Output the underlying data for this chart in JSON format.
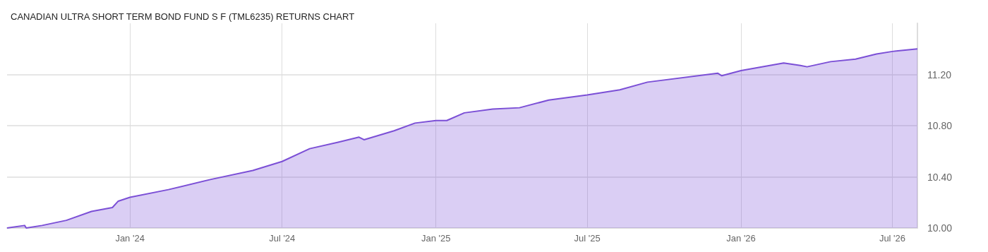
{
  "chart_data": {
    "type": "area",
    "title": "CANADIAN ULTRA SHORT TERM BOND FUND S F (TML6235) RETURNS CHART",
    "x": [
      "2023-08-07",
      "2023-08-28",
      "2023-08-30",
      "2023-09-18",
      "2023-10-17",
      "2023-11-16",
      "2023-12-11",
      "2023-12-18",
      "2024-01-01",
      "2024-02-16",
      "2024-04-07",
      "2024-05-27",
      "2024-07-01",
      "2024-08-03",
      "2024-09-06",
      "2024-10-01",
      "2024-10-07",
      "2024-11-12",
      "2024-12-07",
      "2025-01-01",
      "2025-01-14",
      "2025-02-04",
      "2025-03-10",
      "2025-04-11",
      "2025-05-16",
      "2025-07-01",
      "2025-08-09",
      "2025-09-11",
      "2025-12-04",
      "2025-12-09",
      "2026-01-01",
      "2026-02-21",
      "2026-03-13",
      "2026-03-21",
      "2026-04-18",
      "2026-05-18",
      "2026-06-12",
      "2026-07-01",
      "2026-07-31"
    ],
    "series": [
      {
        "color": "#7b4fd6",
        "values": [
          10.0,
          10.02,
          10.0,
          10.02,
          10.06,
          10.13,
          10.16,
          10.21,
          10.24,
          10.3,
          10.38,
          10.45,
          10.52,
          10.62,
          10.67,
          10.71,
          10.69,
          10.76,
          10.82,
          10.84,
          10.84,
          10.9,
          10.93,
          10.94,
          11.0,
          11.04,
          11.08,
          11.14,
          11.21,
          11.19,
          11.23,
          11.29,
          11.27,
          11.26,
          11.3,
          11.32,
          11.36,
          11.38,
          11.4
        ]
      }
    ],
    "xlim": [
      "2023-08-07",
      "2026-07-31"
    ],
    "xticks": [
      {
        "value": "2024-01-01",
        "label": "Jan '24"
      },
      {
        "value": "2024-07-01",
        "label": "Jul '24"
      },
      {
        "value": "2025-01-01",
        "label": "Jan '25"
      },
      {
        "value": "2025-07-01",
        "label": "Jul '25"
      },
      {
        "value": "2026-01-01",
        "label": "Jan '26"
      },
      {
        "value": "2026-07-01",
        "label": "Jul '26"
      }
    ],
    "ylim": [
      10,
      11.6
    ],
    "yticks": [
      {
        "value": 10,
        "label": "10.00"
      },
      {
        "value": 10.4,
        "label": "10.40"
      },
      {
        "value": 10.8,
        "label": "10.80"
      },
      {
        "value": 11.2,
        "label": "11.20"
      }
    ],
    "grid": true,
    "marker": "none"
  }
}
